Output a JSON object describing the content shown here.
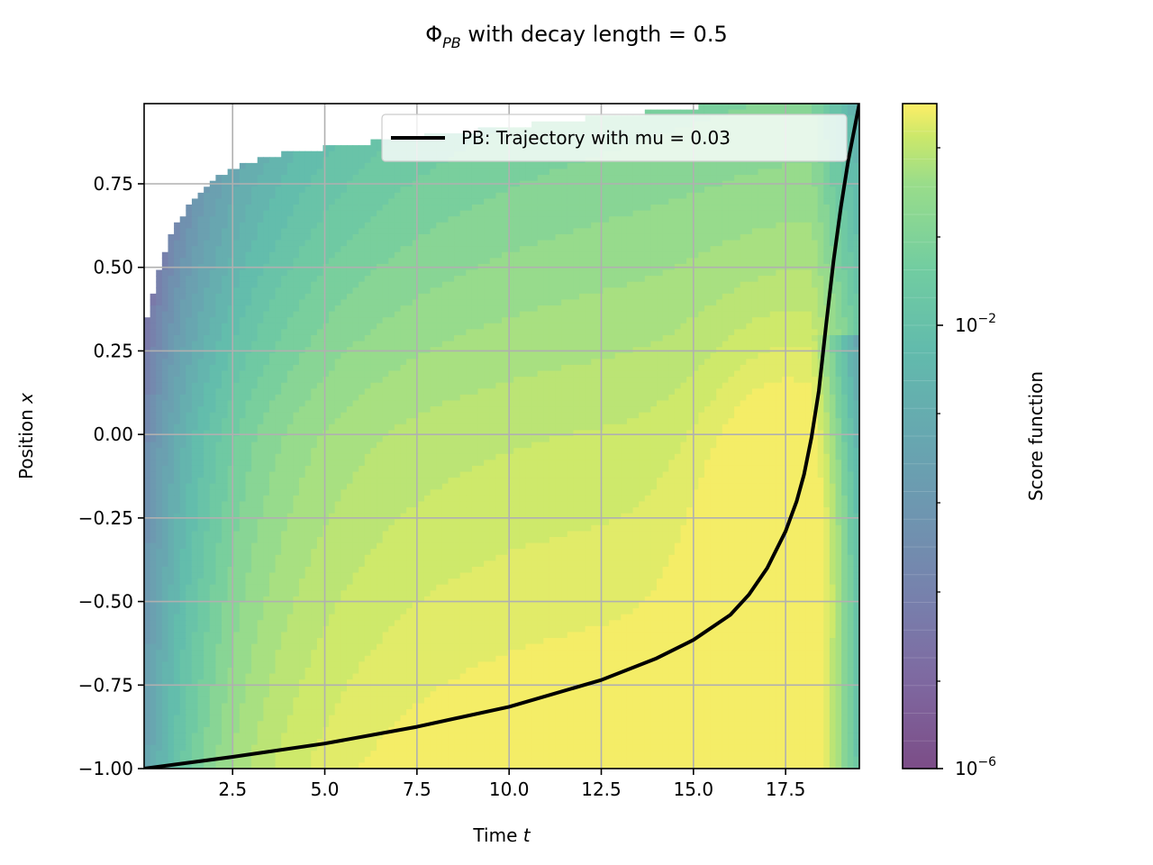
{
  "chart_data": {
    "type": "contour",
    "title_prefix": "Φ",
    "title_subscript": "PB",
    "title_suffix": " with decay length = 0.5",
    "xlabel_text": "Time ",
    "xlabel_var": "t",
    "ylabel_text": "Position ",
    "ylabel_var": "x",
    "xlim": [
      0.1,
      19.5
    ],
    "ylim": [
      -1.0,
      0.99
    ],
    "xticks": [
      2.5,
      5.0,
      7.5,
      10.0,
      12.5,
      15.0,
      17.5
    ],
    "xtick_labels": [
      "2.5",
      "5.0",
      "7.5",
      "10.0",
      "12.5",
      "15.0",
      "17.5"
    ],
    "yticks": [
      0.75,
      0.5,
      0.25,
      0.0,
      -0.25,
      -0.5,
      -0.75,
      -1.0
    ],
    "ytick_labels": [
      "0.75",
      "0.50",
      "0.25",
      "0.00",
      "−0.25",
      "−0.50",
      "−0.75",
      "−1.00"
    ],
    "grid": true,
    "legend_position": "upper right",
    "series": [
      {
        "name": "PB: Trajectory with mu = 0.03",
        "color": "#000000",
        "x": [
          0.1,
          2.5,
          5.0,
          7.5,
          10.0,
          12.5,
          14.0,
          15.0,
          16.0,
          16.5,
          17.0,
          17.5,
          17.8,
          18.0,
          18.2,
          18.4,
          18.6,
          18.8,
          19.0,
          19.2,
          19.5
        ],
        "y": [
          -1.0,
          -0.965,
          -0.925,
          -0.875,
          -0.815,
          -0.735,
          -0.67,
          -0.615,
          -0.54,
          -0.48,
          -0.4,
          -0.29,
          -0.2,
          -0.12,
          -0.01,
          0.13,
          0.33,
          0.52,
          0.68,
          0.82,
          0.99
        ]
      }
    ],
    "colorbar": {
      "label": "Score function",
      "scale": "log",
      "cmap": "viridis",
      "alpha": 0.7,
      "tick_labels": [
        {
          "base": "10",
          "exp": "−6"
        },
        {
          "base": "10",
          "exp": "−2"
        }
      ]
    }
  }
}
